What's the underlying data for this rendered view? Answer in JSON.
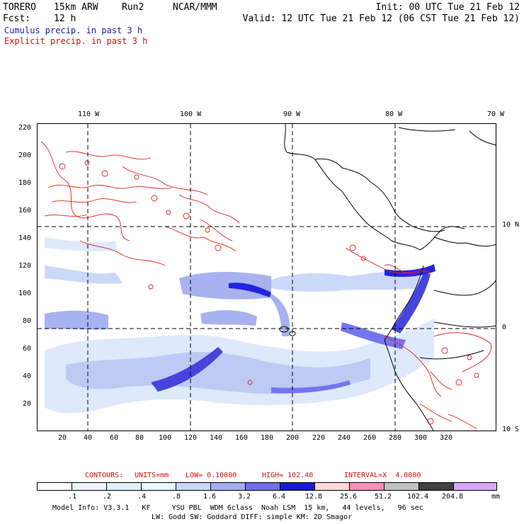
{
  "header": {
    "model": "TORERO",
    "resolution": "15km ARW",
    "run": "Run2",
    "org": "NCAR/MMM",
    "init": "Init: 00 UTC Tue 21 Feb 12",
    "fcst_label": "Fcst:",
    "fcst_value": "12 h",
    "valid": "Valid: 12 UTC Tue 21 Feb 12 (06 CST Tue 21 Feb 12)"
  },
  "legend": {
    "cumulus": "Cumulus precip. in past 3 h",
    "explicit": "Explicit precip. in past 3 h"
  },
  "axes": {
    "top_lon": [
      "110 W",
      "100 W",
      "90 W",
      "80 W",
      "70 W"
    ],
    "right_lat": [
      "10 N",
      "0",
      "10 S"
    ],
    "y_ticks": [
      "220",
      "200",
      "180",
      "160",
      "140",
      "120",
      "100",
      "80",
      "60",
      "40",
      "20"
    ],
    "x_ticks": [
      "20",
      "40",
      "60",
      "80",
      "100",
      "120",
      "140",
      "160",
      "180",
      "200",
      "220",
      "240",
      "260",
      "280",
      "300",
      "320"
    ]
  },
  "contours": {
    "label": "CONTOURS:",
    "units": "UNITS=mm",
    "low": "LOW= 0.10000",
    "high": "HIGH= 102.40",
    "interval": "INTERVAL=X  4.0000"
  },
  "colorbar": {
    "labels": [
      ".1",
      ".2",
      ".4",
      ".8",
      "1.6",
      "3.2",
      "6.4",
      "12.8",
      "25.6",
      "51.2",
      "102.4",
      "204.8"
    ],
    "unit": "mm",
    "colors": [
      "#ffffff",
      "#eef4ff",
      "#dff0fb",
      "#e8fbff",
      "#c8d8f8",
      "#a4aef0",
      "#6e6ef0",
      "#1818e0",
      "#ffd8d8",
      "#f890b8",
      "#c0c0c0",
      "#404040",
      "#d8a8f8"
    ]
  },
  "footer": {
    "line1": "Model Info: V3.3.1   KF     YSU PBL  WDM 6class  Noah LSM  15 km,   44 levels,   96 sec",
    "line2": "LW: Godd SW: Goddard DIFF: simple KM: 2D Smagor"
  }
}
